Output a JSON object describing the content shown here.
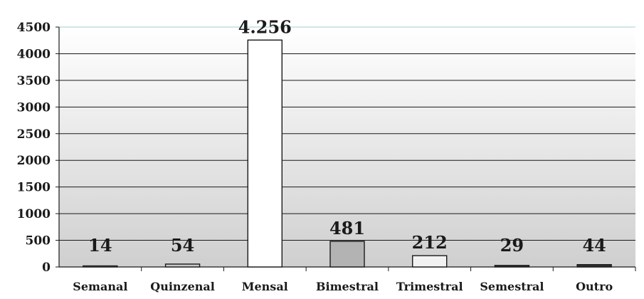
{
  "chart_data": {
    "type": "bar",
    "categories": [
      "Semanal",
      "Quinzenal",
      "Mensal",
      "Bimestral",
      "Trimestral",
      "Semestral",
      "Outro"
    ],
    "values": [
      14,
      54,
      4256,
      481,
      212,
      29,
      44
    ],
    "data_labels": [
      "14",
      "54",
      "4.256",
      "481",
      "212",
      "29",
      "44"
    ],
    "bar_colors": [
      "#ffffff",
      "#c8c8c8",
      "#ffffff",
      "#b3b3b3",
      "#f2f2f2",
      "#333333",
      "#333333"
    ],
    "ylim": [
      0,
      4500
    ],
    "yticks": [
      "0",
      "500",
      "1000",
      "1500",
      "2000",
      "2500",
      "3000",
      "3500",
      "4000",
      "4500"
    ],
    "grid": true,
    "legend": "none",
    "title": "",
    "xlabel": "",
    "ylabel": ""
  }
}
